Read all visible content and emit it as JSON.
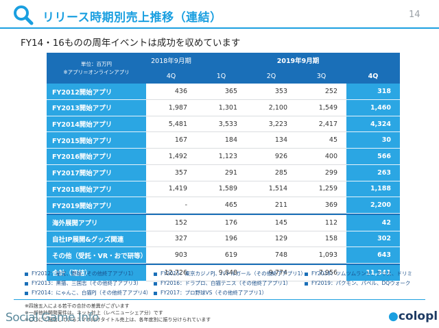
{
  "header": {
    "title": "リリース時期別売上推移（連結）",
    "page_number": "14"
  },
  "subtitle": "FY14・16ものの周年イベントは成功を収めています",
  "table": {
    "unit_label": "単位：百万円",
    "unit_note": "※アプリ＝オンラインアプリ",
    "year_2018": "2018年9月期",
    "year_2019": "2019年9月期",
    "quarters": [
      "4Q",
      "1Q",
      "2Q",
      "3Q",
      "4Q"
    ],
    "rows": [
      {
        "label": "FY2012開始アプリ",
        "values": [
          "436",
          "365",
          "353",
          "252",
          "318"
        ]
      },
      {
        "label": "FY2013開始アプリ",
        "values": [
          "1,987",
          "1,301",
          "2,100",
          "1,549",
          "1,460"
        ]
      },
      {
        "label": "FY2014開始アプリ",
        "values": [
          "5,481",
          "3,533",
          "3,223",
          "2,417",
          "4,324"
        ]
      },
      {
        "label": "FY2015開始アプリ",
        "values": [
          "167",
          "184",
          "134",
          "45",
          "30"
        ]
      },
      {
        "label": "FY2016開始アプリ",
        "values": [
          "1,492",
          "1,123",
          "926",
          "400",
          "566"
        ]
      },
      {
        "label": "FY2017開始アプリ",
        "values": [
          "357",
          "291",
          "285",
          "299",
          "263"
        ]
      },
      {
        "label": "FY2018開始アプリ",
        "values": [
          "1,419",
          "1,589",
          "1,514",
          "1,259",
          "1,188"
        ]
      },
      {
        "label": "FY2019開始アプリ",
        "values": [
          "-",
          "465",
          "211",
          "369",
          "2,200"
        ]
      },
      {
        "label": "海外展開アプリ",
        "values": [
          "152",
          "176",
          "145",
          "112",
          "42"
        ]
      },
      {
        "label": "自社IP展開&グッズ関連",
        "values": [
          "327",
          "196",
          "129",
          "158",
          "302"
        ]
      },
      {
        "label": "その他（受託・VR・おで研等）",
        "values": [
          "903",
          "619",
          "748",
          "1,093",
          "643"
        ]
      },
      {
        "label": "合計（連結）",
        "values": [
          "12,726",
          "9,848",
          "9,774",
          "7,956",
          "11,341"
        ]
      }
    ]
  },
  "legend": {
    "col1": [
      "FY2012：秘宝、野球（その他終了アプリ1）",
      "FY2013：黒猫、三国志（その他終了アプリ3）",
      "FY2014：にゃんこ、白猫PJ（その他終了アプリ4）"
    ],
    "col2": [
      "FY2015：東京カジノPJ、バトルガール（その他終了アプリ1）",
      "FY2016：ドラプロ、白猫テニス（その他終了アプリ1）",
      "FY2017：プロ野球VS（その他終了アプリ1）"
    ],
    "col3": [
      "FY2018：ツムツムランド、アリス、ドリミ",
      "FY2019：パクモン、パペル、DQウォーク"
    ]
  },
  "notes": [
    "※四捨五入による若干の合計の差異がございます",
    "※一部他社開発案件は、ネット計上（レベニューシェア分）です",
    "※〇〇にて配信しているスマホ向けタイトル売上は、各年度別に振り分けられています"
  ],
  "watermark": "Social Game Info",
  "logo": "colopl",
  "colors": {
    "accent": "#1a9fe0",
    "header_dark": "#1a6fb8",
    "row_label": "#2ba6e3",
    "legend_text": "#1a4f8a"
  }
}
